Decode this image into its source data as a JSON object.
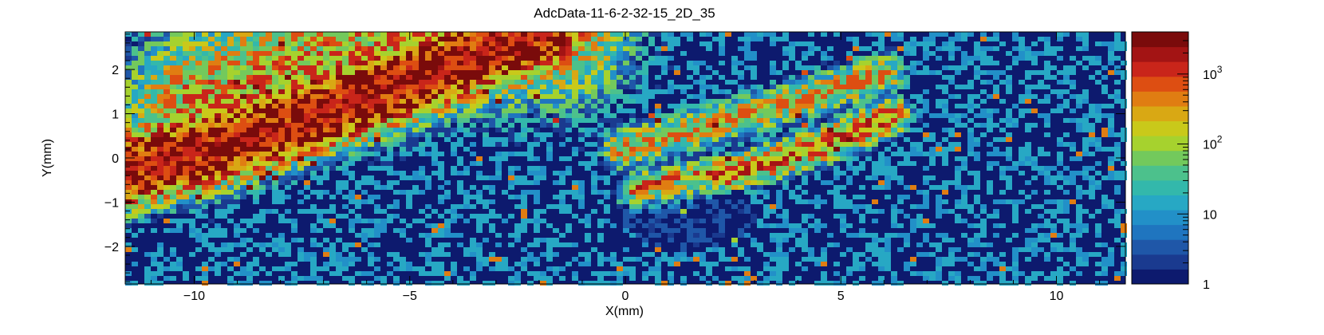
{
  "chart_data": {
    "type": "heatmap",
    "title": "AdcData-11-6-2-32-15_2D_35",
    "xlabel": "X(mm)",
    "ylabel": "Y(mm)",
    "xlim": [
      -11.6,
      11.6
    ],
    "ylim": [
      -2.85,
      2.85
    ],
    "xticks": [
      -10,
      -5,
      0,
      5,
      10
    ],
    "xtick_labels": [
      "−10",
      "−5",
      "0",
      "5",
      "10"
    ],
    "yticks": [
      -2,
      -1,
      0,
      1,
      2
    ],
    "ytick_labels": [
      "−2",
      "−1",
      "0",
      "1",
      "2"
    ],
    "colorbar": {
      "scale": "log",
      "range": [
        1,
        4000
      ],
      "tick_values": [
        1,
        10,
        100,
        1000
      ],
      "tick_labels": [
        "1",
        "10",
        "10^2",
        "10^3"
      ],
      "palette": [
        "#0d1a6e",
        "#1a3a8f",
        "#1f57a8",
        "#1f75bf",
        "#2290c8",
        "#27a8c4",
        "#33b8ab",
        "#4cc18c",
        "#73c95c",
        "#a6d22e",
        "#c9c91a",
        "#d9a814",
        "#e07d12",
        "#dd4e12",
        "#c9251a",
        "#a31414",
        "#7a0b0b"
      ]
    },
    "features": [
      {
        "x": [
          -11.6,
          -9,
          -6,
          -4,
          -2
        ],
        "y": [
          -0.3,
          0.35,
          1.35,
          2.1,
          2.85
        ],
        "peak": 1500,
        "note": "bright diagonal band from left edge"
      },
      {
        "x": [
          -10,
          -7,
          -4,
          -1.5
        ],
        "y": [
          1.2,
          2.2,
          2.8,
          2.9
        ],
        "peak": 120,
        "note": "diffuse upper band"
      },
      {
        "x": [
          0.3,
          2.5,
          4.5,
          6.2
        ],
        "y": [
          -0.75,
          -0.35,
          0.25,
          0.95
        ],
        "peak": 220,
        "note": "lower right diagonal streak"
      },
      {
        "x": [
          -0.1,
          2,
          4,
          6
        ],
        "y": [
          0.2,
          0.75,
          1.3,
          1.9
        ],
        "peak": 90,
        "note": "faint upper right streak"
      }
    ],
    "grid": false
  }
}
